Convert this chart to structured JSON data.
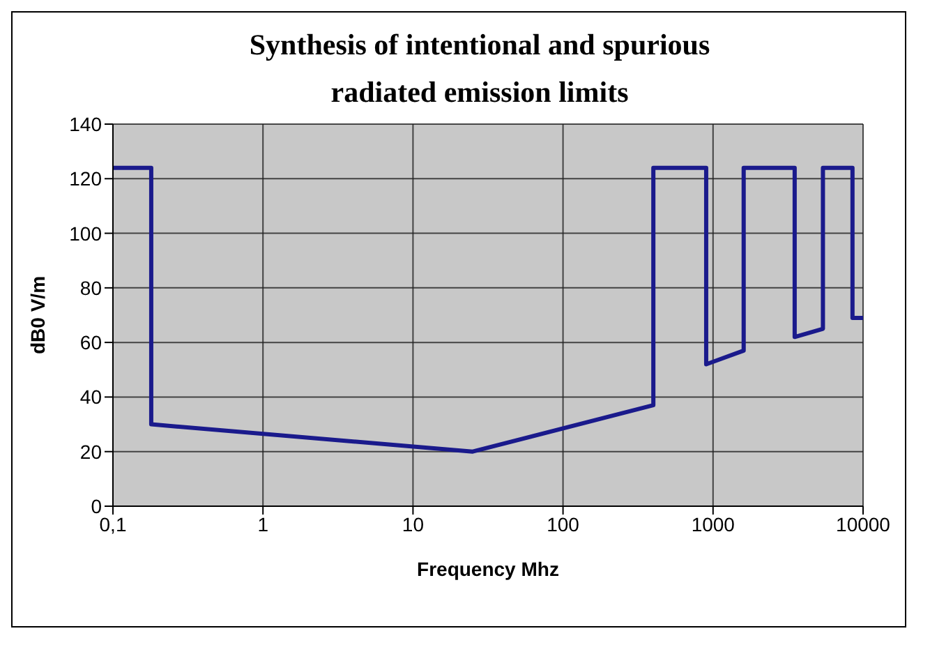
{
  "chart_data": {
    "type": "line",
    "title": "Synthesis of intentional and spurious\nradiated emission limits",
    "xlabel": "Frequency Mhz",
    "ylabel": "dB0 V/m",
    "x": [
      0.1,
      0.18,
      0.18,
      25,
      400,
      400,
      900,
      900,
      1600,
      1600,
      3500,
      3500,
      5400,
      5400,
      8500,
      8500,
      10000
    ],
    "series": [
      {
        "color": "#1a1a8c",
        "values": [
          124,
          124,
          30,
          20,
          37,
          124,
          124,
          52,
          57,
          124,
          124,
          62,
          65,
          124,
          124,
          69,
          69
        ]
      }
    ],
    "log": "x",
    "xlim": [
      0.1,
      10000
    ],
    "xticks": [
      {
        "value": 0.1,
        "label": "0,1"
      },
      1,
      10,
      100,
      1000,
      10000
    ],
    "ylim": [
      0,
      140
    ],
    "yticks": [
      0,
      20,
      40,
      60,
      80,
      100,
      120,
      140
    ],
    "grid": true,
    "marker": "none",
    "line_style": "solid"
  }
}
